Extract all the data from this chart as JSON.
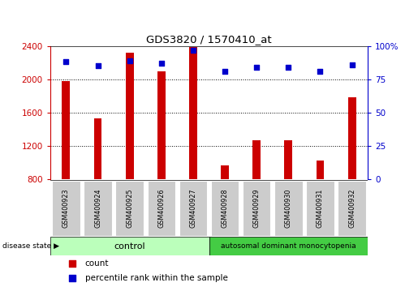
{
  "title": "GDS3820 / 1570410_at",
  "samples": [
    "GSM400923",
    "GSM400924",
    "GSM400925",
    "GSM400926",
    "GSM400927",
    "GSM400928",
    "GSM400929",
    "GSM400930",
    "GSM400931",
    "GSM400932"
  ],
  "counts": [
    1980,
    1530,
    2320,
    2100,
    2390,
    970,
    1270,
    1270,
    1030,
    1780
  ],
  "percentiles": [
    88,
    85,
    89,
    87,
    97,
    81,
    84,
    84,
    81,
    86
  ],
  "bar_color": "#cc0000",
  "dot_color": "#0000cc",
  "ylim_left": [
    800,
    2400
  ],
  "ylim_right": [
    0,
    100
  ],
  "yticks_left": [
    800,
    1200,
    1600,
    2000,
    2400
  ],
  "yticks_right": [
    0,
    25,
    50,
    75,
    100
  ],
  "grid_values": [
    1200,
    1600,
    2000
  ],
  "n_control": 5,
  "n_disease": 5,
  "control_label": "control",
  "disease_label": "autosomal dominant monocytopenia",
  "disease_state_label": "disease state",
  "legend_count": "count",
  "legend_percentile": "percentile rank within the sample",
  "left_axis_color": "#cc0000",
  "right_axis_color": "#0000cc",
  "bar_bottom": 800,
  "bar_width": 0.25,
  "control_bg": "#bbffbb",
  "disease_bg": "#44cc44",
  "tick_bg": "#cccccc",
  "fig_bg": "#ffffff"
}
